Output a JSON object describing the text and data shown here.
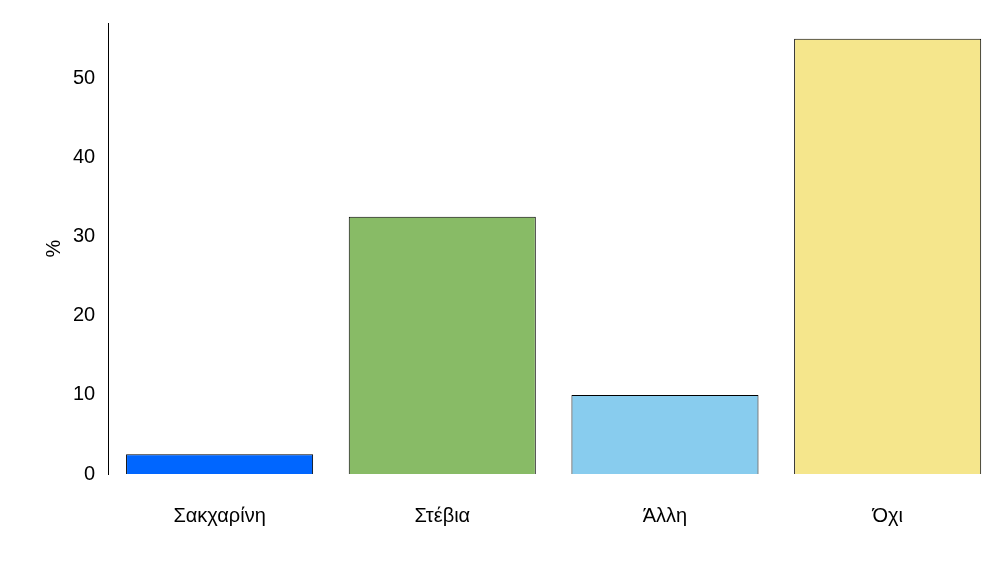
{
  "chart_data": {
    "type": "bar",
    "ylabel": "%",
    "categories": [
      "Σακχαρίνη",
      "Στέβια",
      "Άλλη",
      "Όχι"
    ],
    "values": [
      2.5,
      32.5,
      10,
      55
    ],
    "colors": [
      "#0066ff",
      "#88bb66",
      "#88ccee",
      "#f5e68c"
    ],
    "ylim": [
      0,
      57
    ],
    "yticks": [
      0,
      10,
      20,
      30,
      40,
      50
    ],
    "grid": false,
    "legend": false
  }
}
